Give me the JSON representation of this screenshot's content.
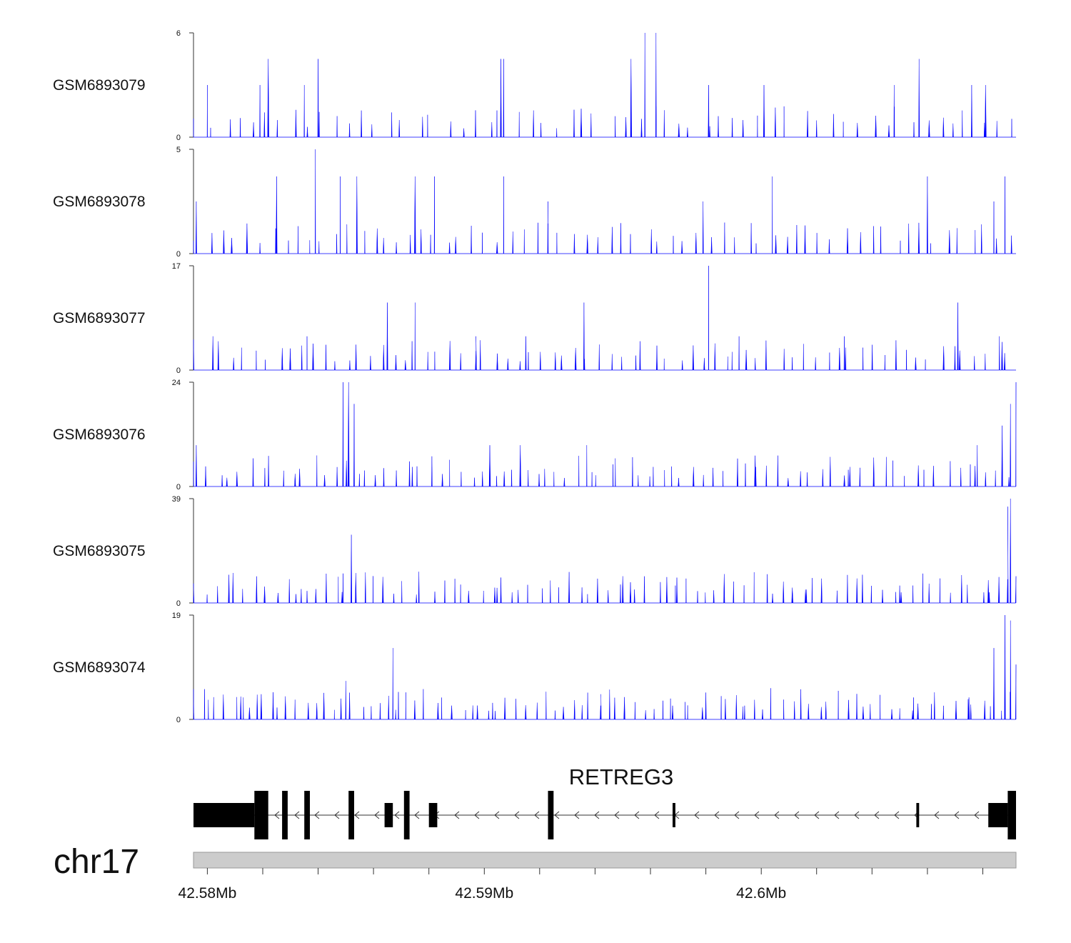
{
  "chart_data": {
    "type": "area",
    "title": "",
    "xlabel": "",
    "ylabel": "",
    "region": {
      "chromosome": "chr17",
      "start": 42.5795,
      "end": 42.6092,
      "unit": "Mb",
      "x_ticks": [
        "42.58Mb",
        "42.59Mb",
        "42.6Mb"
      ],
      "x_tick_values": [
        42.58,
        42.59,
        42.6
      ]
    },
    "series": [
      {
        "name": "GSM6893079",
        "ymax": 6,
        "ymin": 0,
        "peaks": [
          [
            42.58,
            3
          ],
          [
            42.5819,
            3
          ],
          [
            42.5822,
            4.5
          ],
          [
            42.5835,
            3
          ],
          [
            42.584,
            4.5
          ],
          [
            42.5906,
            4.5
          ],
          [
            42.5907,
            4.5
          ],
          [
            42.5953,
            4.5
          ],
          [
            42.5958,
            6
          ],
          [
            42.5962,
            6
          ],
          [
            42.5981,
            3
          ],
          [
            42.6001,
            3
          ],
          [
            42.6048,
            3
          ],
          [
            42.6057,
            4.5
          ],
          [
            42.6076,
            3
          ],
          [
            42.6081,
            3
          ]
        ]
      },
      {
        "name": "GSM6893078",
        "ymax": 5,
        "ymin": 0,
        "peaks": [
          [
            42.5796,
            2.5
          ],
          [
            42.5825,
            3.7
          ],
          [
            42.5839,
            5
          ],
          [
            42.5848,
            3.7
          ],
          [
            42.5854,
            3.7
          ],
          [
            42.5875,
            3.7
          ],
          [
            42.5882,
            3.7
          ],
          [
            42.5907,
            3.7
          ],
          [
            42.5923,
            2.5
          ],
          [
            42.5979,
            2.5
          ],
          [
            42.6004,
            3.7
          ],
          [
            42.606,
            3.7
          ],
          [
            42.6084,
            2.5
          ],
          [
            42.6088,
            3.7
          ]
        ]
      },
      {
        "name": "GSM6893077",
        "ymax": 17,
        "ymin": 0,
        "peaks": [
          [
            42.5802,
            5.5
          ],
          [
            42.5836,
            5.5
          ],
          [
            42.5865,
            11
          ],
          [
            42.5875,
            11
          ],
          [
            42.5897,
            5.5
          ],
          [
            42.5915,
            5.5
          ],
          [
            42.5936,
            11
          ],
          [
            42.5981,
            17
          ],
          [
            42.5992,
            5.5
          ],
          [
            42.603,
            5.5
          ],
          [
            42.6071,
            11
          ],
          [
            42.6086,
            5.5
          ]
        ]
      },
      {
        "name": "GSM6893076",
        "ymax": 24,
        "ymin": 0,
        "peaks": [
          [
            42.5796,
            9.5
          ],
          [
            42.5849,
            24
          ],
          [
            42.5851,
            24
          ],
          [
            42.5853,
            19
          ],
          [
            42.5874,
            4.5
          ],
          [
            42.5902,
            9.5
          ],
          [
            42.5913,
            9.5
          ],
          [
            42.5937,
            9.5
          ],
          [
            42.5961,
            4.5
          ],
          [
            42.5998,
            4.5
          ],
          [
            42.6032,
            4.5
          ],
          [
            42.6078,
            9.5
          ],
          [
            42.6087,
            14
          ],
          [
            42.609,
            19
          ],
          [
            42.6092,
            24
          ]
        ]
      },
      {
        "name": "GSM6893075",
        "ymax": 39,
        "ymin": 0,
        "peaks": [
          [
            42.5795,
            2.5
          ],
          [
            42.5836,
            4.5
          ],
          [
            42.5849,
            11
          ],
          [
            42.5852,
            25.5
          ],
          [
            42.5906,
            9.5
          ],
          [
            42.595,
            10
          ],
          [
            42.5969,
            6.5
          ],
          [
            42.6016,
            5
          ],
          [
            42.605,
            6.5
          ],
          [
            42.6082,
            8.5
          ],
          [
            42.6089,
            36
          ],
          [
            42.609,
            39
          ],
          [
            42.6092,
            10
          ]
        ]
      },
      {
        "name": "GSM6893074",
        "ymax": 19,
        "ymin": 0,
        "peaks": [
          [
            42.5795,
            5.5
          ],
          [
            42.5799,
            5.5
          ],
          [
            42.5813,
            4
          ],
          [
            42.5818,
            4.5
          ],
          [
            42.585,
            7
          ],
          [
            42.5867,
            13
          ],
          [
            42.5869,
            5
          ],
          [
            42.5903,
            3
          ],
          [
            42.5942,
            2.5
          ],
          [
            42.5968,
            2.5
          ],
          [
            42.5994,
            2.5
          ],
          [
            42.6055,
            4
          ],
          [
            42.6075,
            4
          ],
          [
            42.6084,
            13
          ],
          [
            42.6088,
            19
          ],
          [
            42.609,
            18
          ],
          [
            42.6092,
            10
          ]
        ]
      }
    ],
    "gene": {
      "name": "RETREG3",
      "strand": "-",
      "exons": [
        [
          42.5795,
          42.5817
        ],
        [
          42.5817,
          42.5822
        ],
        [
          42.5827,
          42.5829
        ],
        [
          42.5835,
          42.5837
        ],
        [
          42.5851,
          42.5853
        ],
        [
          42.5864,
          42.5867
        ],
        [
          42.5871,
          42.5873
        ],
        [
          42.588,
          42.5882
        ],
        [
          42.5881,
          42.5883
        ],
        [
          42.5923,
          42.5925
        ],
        [
          42.5968,
          42.5969
        ],
        [
          42.6056,
          42.6057
        ],
        [
          42.6082,
          42.6089
        ],
        [
          42.6089,
          42.6092
        ]
      ],
      "tall_exons": [
        [
          42.5817,
          42.5822
        ],
        [
          42.5827,
          42.5829
        ],
        [
          42.5835,
          42.5837
        ],
        [
          42.5851,
          42.5853
        ],
        [
          42.5871,
          42.5873
        ],
        [
          42.5923,
          42.5925
        ],
        [
          42.6089,
          42.6092
        ]
      ]
    }
  }
}
